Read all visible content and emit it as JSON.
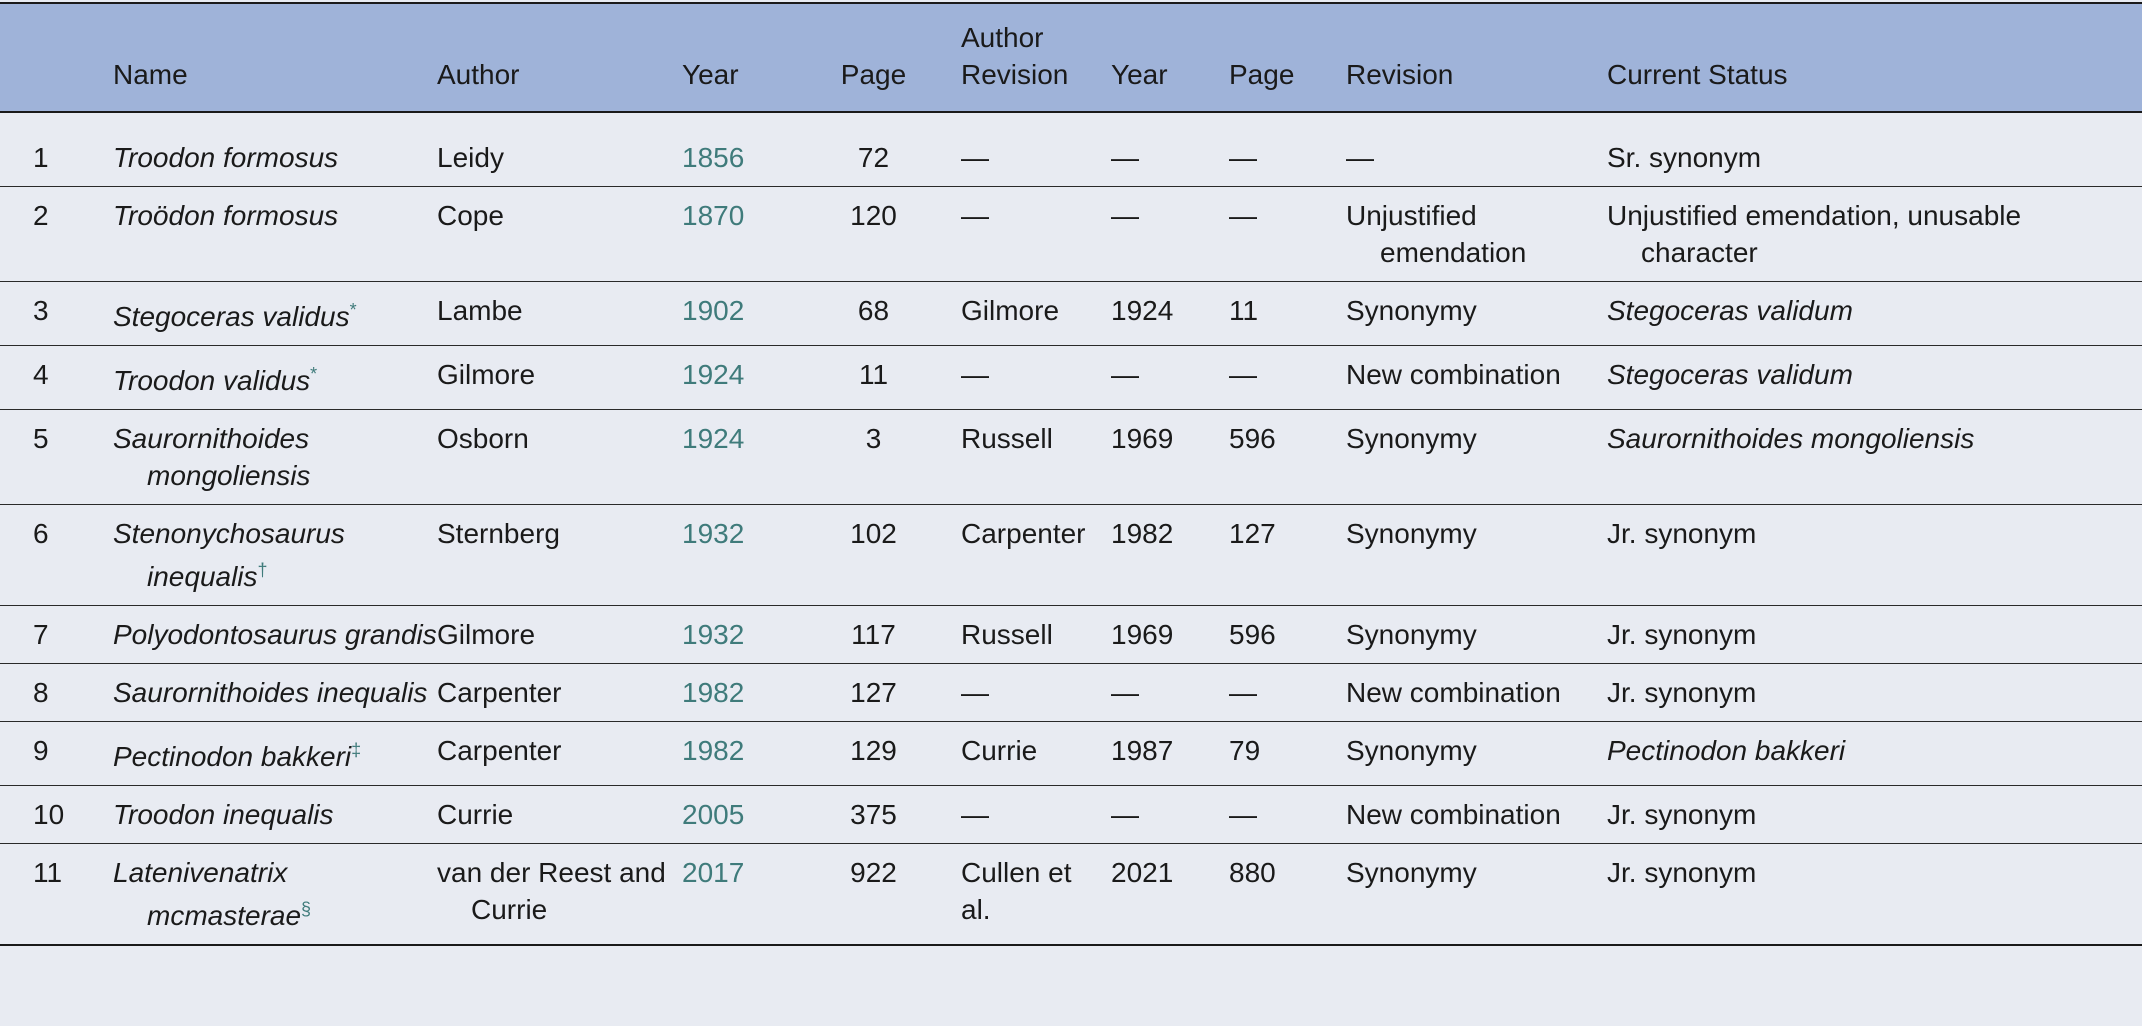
{
  "header": {
    "name": "Name",
    "author": "Author",
    "year": "Year",
    "page": "Page",
    "author_revision_line1": "Author",
    "author_revision_line2": "Revision",
    "rev_year": "Year",
    "rev_page": "Page",
    "revision": "Revision",
    "current_status": "Current Status"
  },
  "rows": [
    {
      "num": "1",
      "name": "Troodon formosus",
      "mark": "",
      "author": "Leidy",
      "year": "1856",
      "page": "72",
      "author_rev": "—",
      "rev_year": "—",
      "rev_page": "—",
      "revision": "—",
      "status": "Sr. synonym",
      "status_italic": false
    },
    {
      "num": "2",
      "name": "Troödon formosus",
      "mark": "",
      "author": "Cope",
      "year": "1870",
      "page": "120",
      "author_rev": "—",
      "rev_year": "—",
      "rev_page": "—",
      "revision": "Unjustified emendation",
      "status": "Unjustified emendation, unusable character",
      "status_italic": false
    },
    {
      "num": "3",
      "name": "Stegoceras validus",
      "mark": "*",
      "author": "Lambe",
      "year": "1902",
      "page": "68",
      "author_rev": "Gilmore",
      "rev_year": "1924",
      "rev_page": "11",
      "revision": "Synonymy",
      "status": "Stegoceras validum",
      "status_italic": true
    },
    {
      "num": "4",
      "name": "Troodon validus",
      "mark": "*",
      "author": "Gilmore",
      "year": "1924",
      "page": "11",
      "author_rev": "—",
      "rev_year": "—",
      "rev_page": "—",
      "revision": "New combination",
      "status": "Stegoceras validum",
      "status_italic": true
    },
    {
      "num": "5",
      "name": "Saurornithoides mongoliensis",
      "mark": "",
      "author": "Osborn",
      "year": "1924",
      "page": "3",
      "author_rev": "Russell",
      "rev_year": "1969",
      "rev_page": "596",
      "revision": "Synonymy",
      "status": "Saurornithoides mongoliensis",
      "status_italic": true
    },
    {
      "num": "6",
      "name": "Stenonychosaurus inequalis",
      "mark": "†",
      "author": "Sternberg",
      "year": "1932",
      "page": "102",
      "author_rev": "Carpenter",
      "rev_year": "1982",
      "rev_page": "127",
      "revision": "Synonymy",
      "status": "Jr. synonym",
      "status_italic": false
    },
    {
      "num": "7",
      "name": "Polyodontosaurus grandis",
      "mark": "",
      "author": "Gilmore",
      "year": "1932",
      "page": "117",
      "author_rev": "Russell",
      "rev_year": "1969",
      "rev_page": "596",
      "revision": "Synonymy",
      "status": "Jr. synonym",
      "status_italic": false
    },
    {
      "num": "8",
      "name": "Saurornithoides inequalis",
      "mark": "",
      "author": "Carpenter",
      "year": "1982",
      "page": "127",
      "author_rev": "—",
      "rev_year": "—",
      "rev_page": "—",
      "revision": "New combination",
      "status": "Jr. synonym",
      "status_italic": false
    },
    {
      "num": "9",
      "name": "Pectinodon bakkeri",
      "mark": "‡",
      "author": "Carpenter",
      "year": "1982",
      "page": "129",
      "author_rev": "Currie",
      "rev_year": "1987",
      "rev_page": "79",
      "revision": "Synonymy",
      "status": "Pectinodon bakkeri",
      "status_italic": true
    },
    {
      "num": "10",
      "name": "Troodon inequalis",
      "mark": "",
      "author": "Currie",
      "year": "2005",
      "page": "375",
      "author_rev": "—",
      "rev_year": "—",
      "rev_page": "—",
      "revision": "New combination",
      "status": "Jr. synonym",
      "status_italic": false
    },
    {
      "num": "11",
      "name": "Latenivenatrix mcmasterae",
      "mark": "§",
      "author": "van der Reest and Currie",
      "year": "2017",
      "page": "922",
      "author_rev": "Cullen et al.",
      "rev_year": "2021",
      "rev_page": "880",
      "revision": "Synonymy",
      "status": "Jr. synonym",
      "status_italic": false
    }
  ]
}
